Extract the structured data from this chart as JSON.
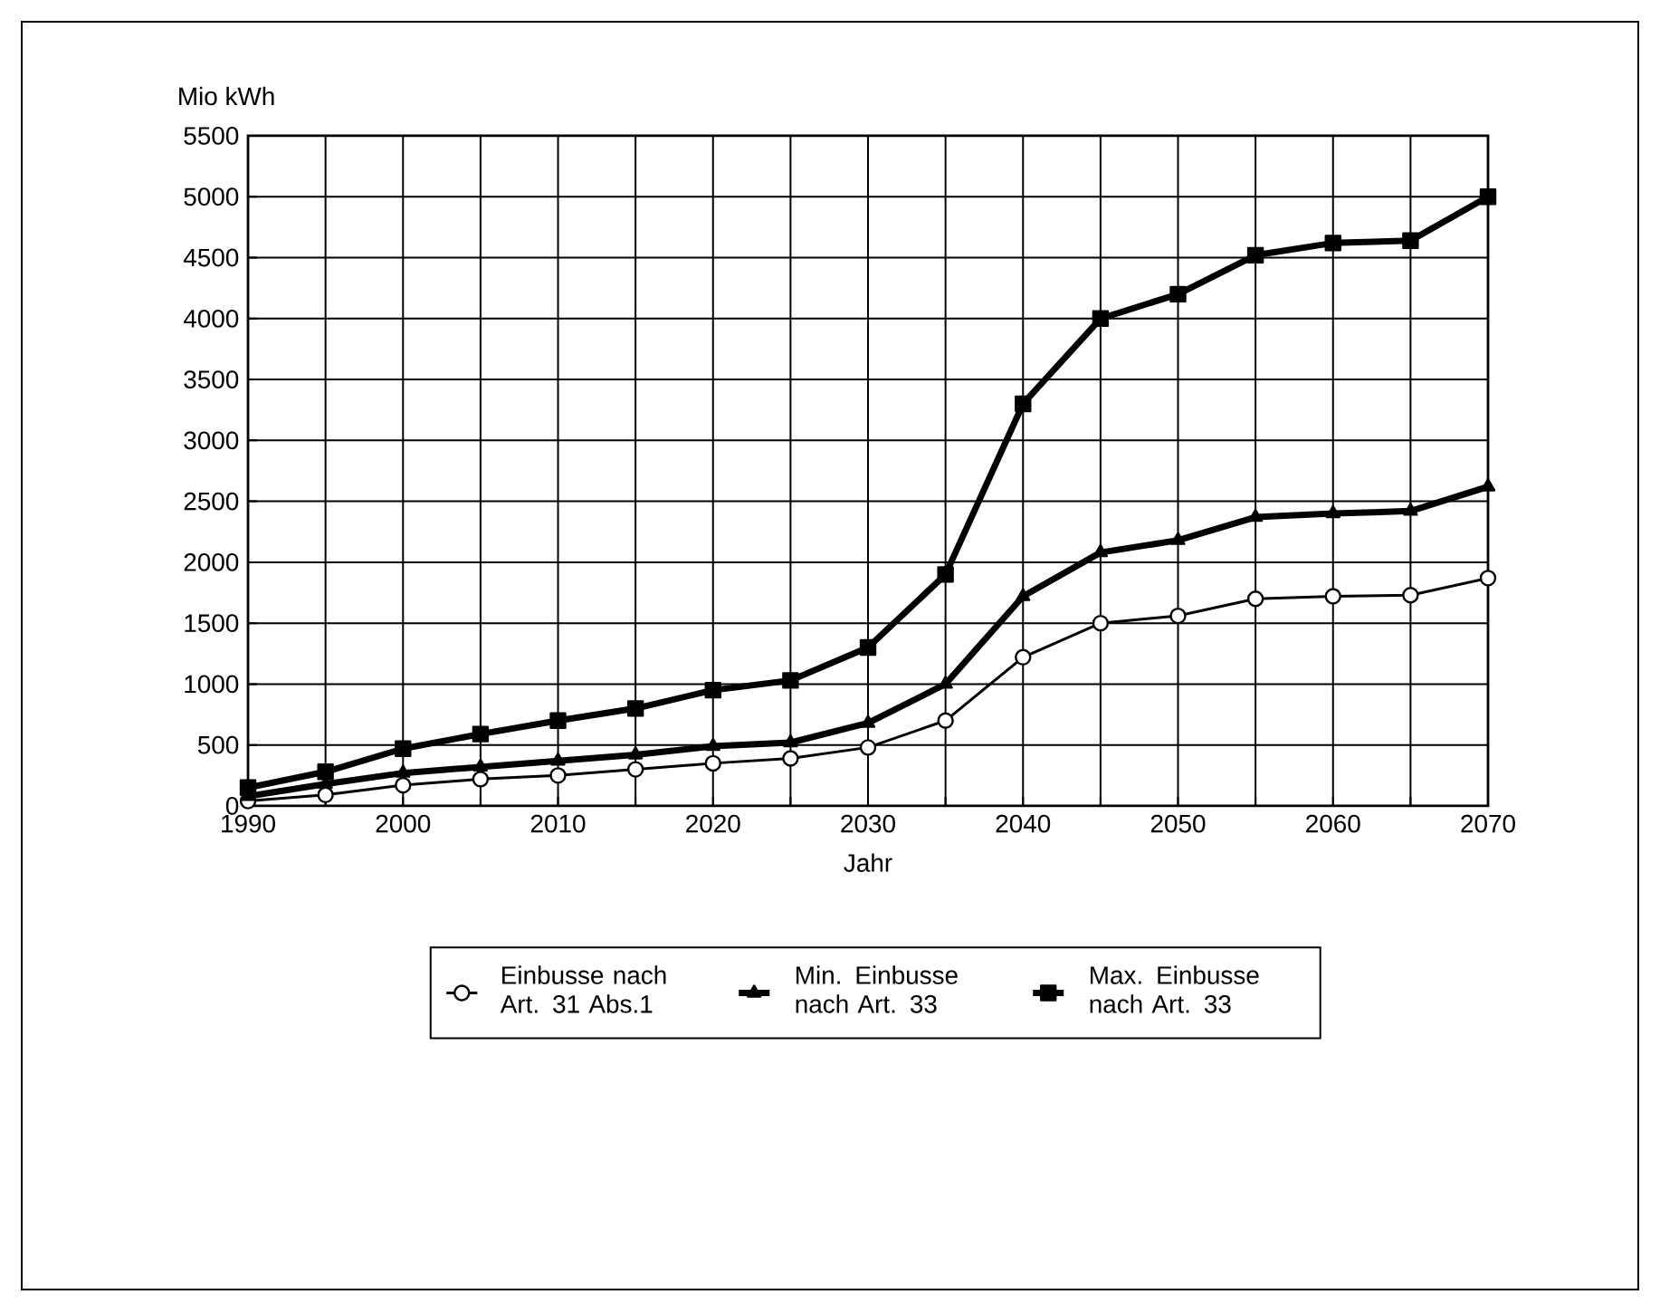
{
  "chart_data": {
    "type": "line",
    "ylabel": "Mio kWh",
    "xlabel": "Jahr",
    "x": [
      1990,
      1995,
      2000,
      2005,
      2010,
      2015,
      2020,
      2025,
      2030,
      2035,
      2040,
      2045,
      2050,
      2055,
      2060,
      2065,
      2070
    ],
    "series": [
      {
        "name": "Einbusse nach Art. 31 Abs.1",
        "color": "#000000",
        "marker": "circle",
        "values": [
          40,
          90,
          170,
          220,
          250,
          300,
          350,
          390,
          480,
          700,
          1220,
          1500,
          1560,
          1700,
          1720,
          1730,
          1870
        ]
      },
      {
        "name": "Min. Einbusse nach Art. 33",
        "color": "#000000",
        "marker": "triangle",
        "values": [
          80,
          180,
          270,
          320,
          370,
          420,
          490,
          520,
          680,
          1000,
          1720,
          2080,
          2180,
          2370,
          2400,
          2420,
          2620
        ]
      },
      {
        "name": "Max. Einbusse nach Art. 33",
        "color": "#000000",
        "marker": "square",
        "values": [
          150,
          280,
          470,
          590,
          700,
          800,
          950,
          1030,
          1300,
          1900,
          3300,
          4000,
          4200,
          4520,
          4620,
          4640,
          5000
        ]
      }
    ],
    "xlim": [
      1990,
      2070
    ],
    "xticks": [
      1990,
      {
        "value": 1995,
        "label": null
      },
      2000,
      {
        "value": 2005,
        "label": null
      },
      2010,
      {
        "value": 2015,
        "label": null
      },
      2020,
      {
        "value": 2025,
        "label": null
      },
      2030,
      {
        "value": 2035,
        "label": null
      },
      2040,
      {
        "value": 2045,
        "label": null
      },
      2050,
      {
        "value": 2055,
        "label": null
      },
      2060,
      {
        "value": 2065,
        "label": null
      },
      2070
    ],
    "ylim": [
      0,
      5500
    ],
    "yticks": [
      0,
      500,
      1000,
      1500,
      2000,
      2500,
      3000,
      3500,
      4000,
      4500,
      5000,
      5500
    ],
    "grid": true,
    "legend": "bottom",
    "line_style": "solid"
  }
}
